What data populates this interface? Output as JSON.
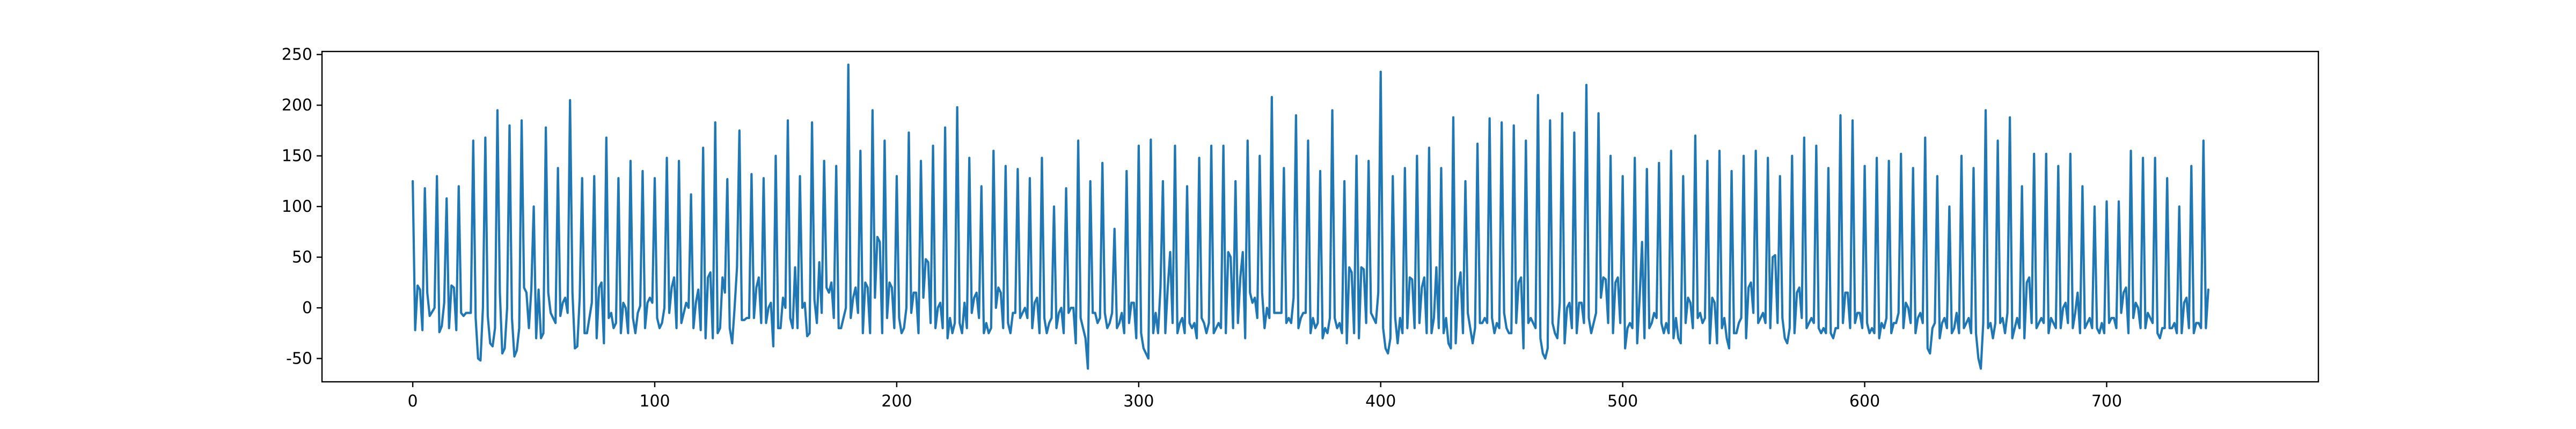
{
  "chart_data": {
    "type": "line",
    "title": "",
    "xlabel": "",
    "ylabel": "",
    "xlim": [
      -37.5,
      787.5
    ],
    "ylim": [
      -73,
      253
    ],
    "xticks": [
      0,
      100,
      200,
      300,
      400,
      500,
      600,
      700
    ],
    "yticks": [
      -50,
      0,
      50,
      100,
      150,
      200,
      250
    ],
    "grid": false,
    "legend": "none",
    "series": [
      {
        "color": "#1f77b4",
        "x_start": 0,
        "x_step": 1,
        "values": [
          125,
          -22,
          22,
          18,
          -22,
          118,
          15,
          -8,
          -4,
          0,
          130,
          -24,
          -18,
          5,
          108,
          -20,
          22,
          20,
          -22,
          120,
          -5,
          -8,
          -5,
          -5,
          -5,
          165,
          -10,
          -50,
          -52,
          0,
          168,
          -8,
          -35,
          -38,
          -20,
          195,
          15,
          -45,
          -40,
          0,
          180,
          -10,
          -48,
          -42,
          -20,
          185,
          20,
          15,
          -20,
          18,
          100,
          -30,
          18,
          -30,
          -25,
          178,
          15,
          -5,
          -10,
          -15,
          138,
          -8,
          5,
          10,
          -5,
          205,
          15,
          -40,
          -38,
          10,
          128,
          -25,
          -25,
          -10,
          5,
          130,
          -30,
          20,
          25,
          -35,
          168,
          -10,
          -5,
          -20,
          -15,
          128,
          -25,
          5,
          0,
          -25,
          145,
          -10,
          -25,
          -5,
          2,
          135,
          -20,
          5,
          10,
          5,
          128,
          -10,
          -20,
          -15,
          0,
          148,
          -5,
          20,
          30,
          -20,
          145,
          -15,
          -5,
          5,
          0,
          112,
          -20,
          5,
          18,
          -22,
          158,
          -30,
          30,
          35,
          -30,
          183,
          -25,
          -20,
          30,
          15,
          127,
          -20,
          -35,
          0,
          40,
          175,
          -12,
          -12,
          -10,
          -10,
          132,
          -10,
          20,
          30,
          -15,
          128,
          -15,
          0,
          5,
          -38,
          150,
          -20,
          -20,
          10,
          0,
          185,
          -10,
          -20,
          40,
          -20,
          130,
          0,
          5,
          -28,
          -25,
          183,
          8,
          -15,
          45,
          -5,
          145,
          20,
          15,
          25,
          -10,
          140,
          -20,
          -20,
          -10,
          0,
          240,
          -10,
          10,
          20,
          -5,
          155,
          -25,
          25,
          20,
          -25,
          195,
          10,
          70,
          65,
          -25,
          165,
          -10,
          25,
          20,
          -20,
          130,
          -10,
          -25,
          -20,
          0,
          173,
          -5,
          15,
          15,
          -25,
          145,
          10,
          48,
          45,
          -15,
          160,
          -20,
          0,
          5,
          -20,
          178,
          -30,
          -10,
          -25,
          -15,
          198,
          -15,
          -25,
          5,
          -20,
          148,
          -5,
          10,
          15,
          -10,
          120,
          -25,
          -15,
          -25,
          -20,
          155,
          0,
          20,
          15,
          -20,
          140,
          -15,
          -25,
          -5,
          -5,
          137,
          -10,
          -5,
          0,
          -10,
          128,
          -20,
          5,
          10,
          -25,
          148,
          -10,
          -25,
          -15,
          -10,
          100,
          -20,
          -5,
          0,
          -25,
          118,
          -5,
          0,
          0,
          -35,
          165,
          -10,
          -20,
          -30,
          -60,
          125,
          -5,
          -5,
          -15,
          -10,
          143,
          -5,
          -20,
          -15,
          -5,
          78,
          -20,
          -15,
          -5,
          -25,
          135,
          -15,
          5,
          5,
          -30,
          160,
          -25,
          -40,
          -45,
          -50,
          166,
          -25,
          -5,
          -25,
          20,
          125,
          -25,
          20,
          55,
          -15,
          160,
          -25,
          -15,
          -10,
          -25,
          120,
          -15,
          -20,
          -15,
          -30,
          148,
          -10,
          -15,
          -25,
          -15,
          160,
          -25,
          -20,
          -15,
          -20,
          160,
          -25,
          55,
          50,
          -20,
          125,
          -15,
          30,
          55,
          -30,
          165,
          15,
          5,
          10,
          -10,
          150,
          15,
          -20,
          0,
          -10,
          208,
          -5,
          -5,
          -5,
          -5,
          138,
          -15,
          -10,
          -15,
          10,
          190,
          -20,
          -10,
          -5,
          -5,
          165,
          -25,
          -10,
          -20,
          -15,
          135,
          -30,
          -20,
          -25,
          -10,
          195,
          -10,
          -20,
          -15,
          -25,
          125,
          -35,
          40,
          35,
          -25,
          150,
          -30,
          40,
          38,
          -15,
          145,
          -5,
          -10,
          -15,
          15,
          233,
          -20,
          -40,
          -45,
          -30,
          130,
          -10,
          -35,
          -10,
          -25,
          138,
          -20,
          30,
          28,
          -20,
          150,
          -15,
          20,
          30,
          -25,
          158,
          -25,
          -10,
          40,
          -20,
          138,
          -25,
          -10,
          -35,
          -40,
          188,
          -35,
          20,
          35,
          -25,
          125,
          -5,
          -20,
          -35,
          -20,
          162,
          -15,
          -15,
          -10,
          -15,
          187,
          -10,
          -25,
          -15,
          -20,
          183,
          -5,
          -20,
          -25,
          -25,
          180,
          -15,
          25,
          30,
          -40,
          165,
          -15,
          -10,
          -15,
          -20,
          210,
          -30,
          -45,
          -50,
          -40,
          185,
          -15,
          -25,
          -30,
          5,
          192,
          -35,
          0,
          5,
          -20,
          173,
          -25,
          5,
          5,
          -15,
          220,
          -10,
          -25,
          -15,
          -5,
          192,
          10,
          30,
          28,
          -15,
          150,
          -25,
          25,
          30,
          -15,
          130,
          -40,
          -20,
          -15,
          -20,
          148,
          -35,
          10,
          65,
          -30,
          137,
          -20,
          -15,
          -5,
          -10,
          143,
          -15,
          -25,
          -15,
          -25,
          155,
          -30,
          -10,
          -30,
          -35,
          130,
          -15,
          10,
          5,
          -20,
          170,
          -10,
          -5,
          -15,
          -10,
          145,
          -35,
          10,
          5,
          -35,
          155,
          -20,
          -10,
          -30,
          -40,
          135,
          -25,
          -25,
          -15,
          -10,
          150,
          -30,
          20,
          25,
          -5,
          155,
          -15,
          -10,
          -5,
          -15,
          148,
          -20,
          50,
          52,
          -15,
          130,
          -10,
          -30,
          -35,
          -20,
          150,
          -25,
          15,
          20,
          -10,
          168,
          -20,
          -15,
          -10,
          -15,
          160,
          -20,
          -25,
          -20,
          -25,
          138,
          -25,
          -30,
          -20,
          -20,
          190,
          -15,
          15,
          15,
          -20,
          185,
          -15,
          -5,
          -5,
          -20,
          140,
          -15,
          -25,
          -20,
          -25,
          148,
          -30,
          -15,
          -20,
          -10,
          145,
          -25,
          -15,
          -15,
          -5,
          152,
          -20,
          5,
          0,
          -15,
          138,
          -25,
          -10,
          -5,
          -15,
          168,
          -40,
          -45,
          -20,
          -15,
          130,
          -30,
          -15,
          -10,
          -20,
          100,
          -25,
          -20,
          -5,
          -25,
          150,
          -20,
          -15,
          -10,
          -25,
          138,
          -25,
          -50,
          -60,
          -15,
          195,
          -20,
          -15,
          -30,
          -15,
          165,
          -15,
          -10,
          -25,
          -5,
          188,
          -30,
          -20,
          -10,
          -20,
          120,
          -30,
          25,
          30,
          -15,
          152,
          -20,
          -15,
          -10,
          -15,
          152,
          -25,
          -10,
          -15,
          -20,
          140,
          -20,
          0,
          5,
          -15,
          152,
          -20,
          -5,
          15,
          -25,
          120,
          -20,
          -15,
          -10,
          -20,
          100,
          -20,
          -25,
          -15,
          -25,
          105,
          -15,
          -10,
          -10,
          -20,
          105,
          -5,
          15,
          20,
          -25,
          155,
          -10,
          5,
          0,
          -20,
          148,
          -20,
          -5,
          -10,
          -15,
          148,
          -25,
          -30,
          -20,
          -20,
          128,
          -20,
          -20,
          -15,
          -25,
          100,
          -25,
          5,
          10,
          -20,
          140,
          -25,
          -15,
          -15,
          -20,
          165,
          -20,
          18
        ]
      }
    ]
  }
}
